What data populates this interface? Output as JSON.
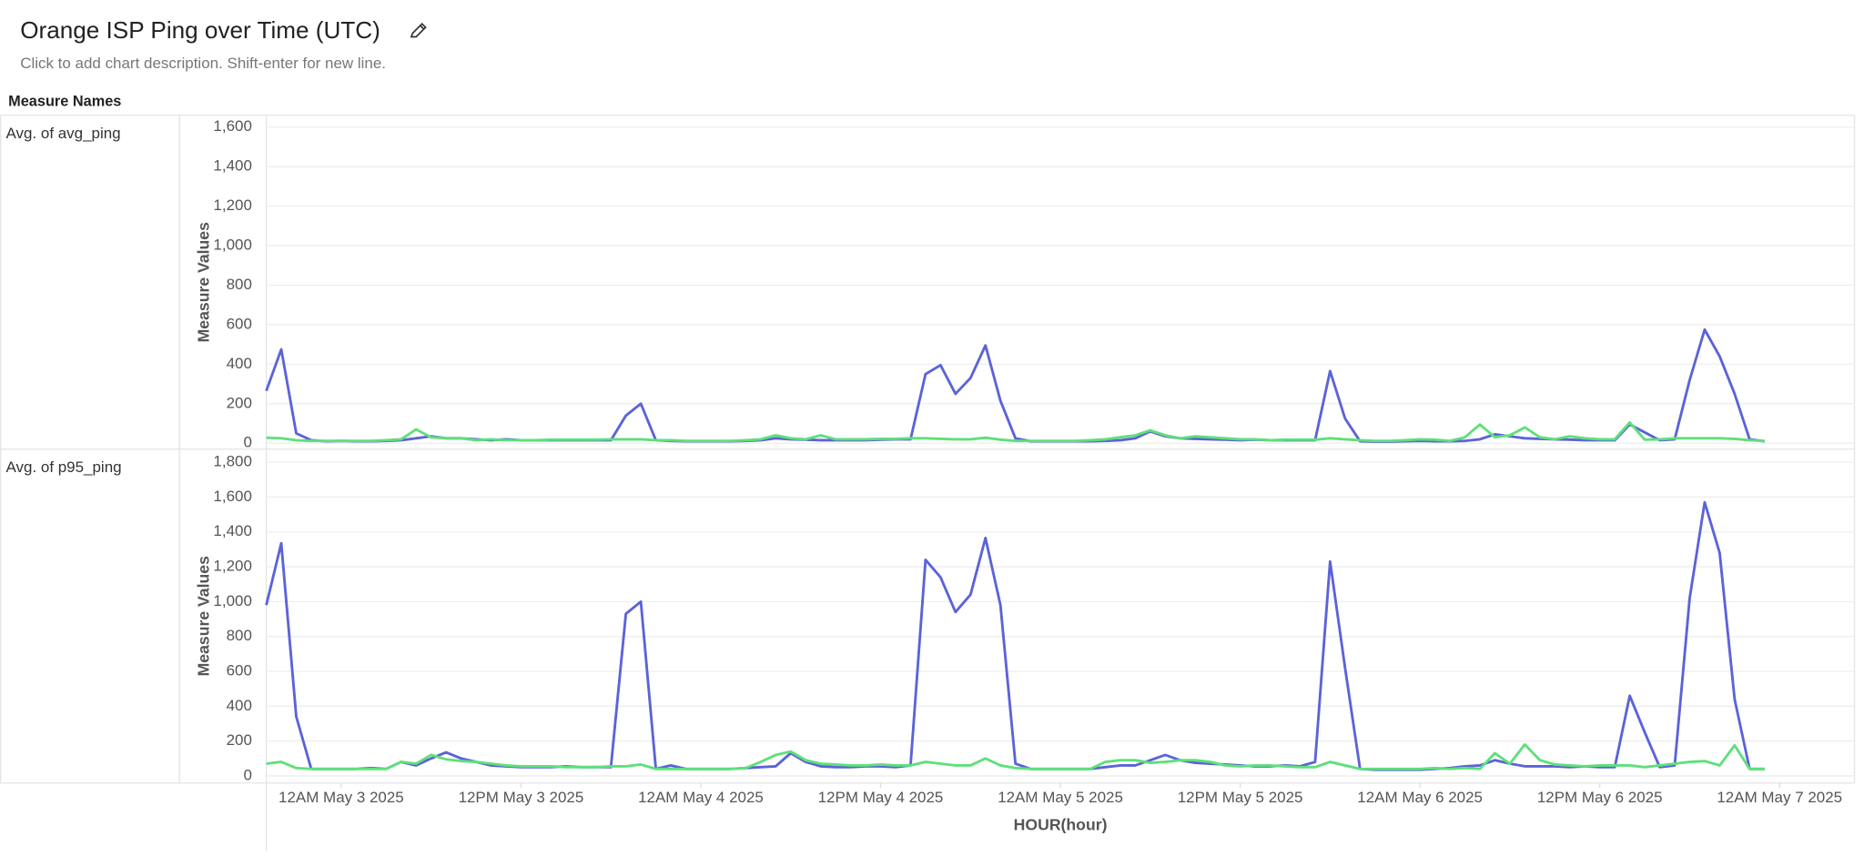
{
  "chart_data": {
    "type": "line",
    "title": "Orange ISP Ping over Time (UTC)",
    "subtitle": "Click to add chart description. Shift-enter for new line.",
    "facet_header": "Measure Names",
    "x_label": "HOUR(hour)",
    "x": [
      "2025-05-02T19:00",
      "2025-05-02T20:00",
      "2025-05-02T21:00",
      "2025-05-02T22:00",
      "2025-05-02T23:00",
      "2025-05-03T00:00",
      "2025-05-03T01:00",
      "2025-05-03T02:00",
      "2025-05-03T03:00",
      "2025-05-03T04:00",
      "2025-05-03T05:00",
      "2025-05-03T06:00",
      "2025-05-03T07:00",
      "2025-05-03T08:00",
      "2025-05-03T09:00",
      "2025-05-03T10:00",
      "2025-05-03T11:00",
      "2025-05-03T12:00",
      "2025-05-03T13:00",
      "2025-05-03T14:00",
      "2025-05-03T15:00",
      "2025-05-03T16:00",
      "2025-05-03T17:00",
      "2025-05-03T18:00",
      "2025-05-03T19:00",
      "2025-05-03T20:00",
      "2025-05-03T21:00",
      "2025-05-03T22:00",
      "2025-05-03T23:00",
      "2025-05-04T00:00",
      "2025-05-04T01:00",
      "2025-05-04T02:00",
      "2025-05-04T03:00",
      "2025-05-04T04:00",
      "2025-05-04T05:00",
      "2025-05-04T06:00",
      "2025-05-04T07:00",
      "2025-05-04T08:00",
      "2025-05-04T09:00",
      "2025-05-04T10:00",
      "2025-05-04T11:00",
      "2025-05-04T12:00",
      "2025-05-04T13:00",
      "2025-05-04T14:00",
      "2025-05-04T15:00",
      "2025-05-04T16:00",
      "2025-05-04T17:00",
      "2025-05-04T18:00",
      "2025-05-04T19:00",
      "2025-05-04T20:00",
      "2025-05-04T21:00",
      "2025-05-04T22:00",
      "2025-05-04T23:00",
      "2025-05-05T00:00",
      "2025-05-05T01:00",
      "2025-05-05T02:00",
      "2025-05-05T03:00",
      "2025-05-05T04:00",
      "2025-05-05T05:00",
      "2025-05-05T06:00",
      "2025-05-05T07:00",
      "2025-05-05T08:00",
      "2025-05-05T09:00",
      "2025-05-05T10:00",
      "2025-05-05T11:00",
      "2025-05-05T12:00",
      "2025-05-05T13:00",
      "2025-05-05T14:00",
      "2025-05-05T15:00",
      "2025-05-05T16:00",
      "2025-05-05T17:00",
      "2025-05-05T18:00",
      "2025-05-05T19:00",
      "2025-05-05T20:00",
      "2025-05-05T21:00",
      "2025-05-05T22:00",
      "2025-05-05T23:00",
      "2025-05-06T00:00",
      "2025-05-06T01:00",
      "2025-05-06T02:00",
      "2025-05-06T03:00",
      "2025-05-06T04:00",
      "2025-05-06T05:00",
      "2025-05-06T06:00",
      "2025-05-06T07:00",
      "2025-05-06T08:00",
      "2025-05-06T09:00",
      "2025-05-06T10:00",
      "2025-05-06T11:00",
      "2025-05-06T12:00",
      "2025-05-06T13:00",
      "2025-05-06T14:00",
      "2025-05-06T15:00",
      "2025-05-06T16:00",
      "2025-05-06T17:00",
      "2025-05-06T18:00",
      "2025-05-06T19:00",
      "2025-05-06T20:00",
      "2025-05-06T21:00",
      "2025-05-06T22:00",
      "2025-05-06T23:00"
    ],
    "xlim": [
      "2025-05-02T19:00",
      "2025-05-07T05:00"
    ],
    "xticks": [
      {
        "value": "2025-05-03T00:00",
        "label": "12AM May 3 2025"
      },
      {
        "value": "2025-05-03T12:00",
        "label": "12PM May 3 2025"
      },
      {
        "value": "2025-05-04T00:00",
        "label": "12AM May 4 2025"
      },
      {
        "value": "2025-05-04T12:00",
        "label": "12PM May 4 2025"
      },
      {
        "value": "2025-05-05T00:00",
        "label": "12AM May 5 2025"
      },
      {
        "value": "2025-05-05T12:00",
        "label": "12PM May 5 2025"
      },
      {
        "value": "2025-05-06T00:00",
        "label": "12AM May 6 2025"
      },
      {
        "value": "2025-05-06T12:00",
        "label": "12PM May 6 2025"
      },
      {
        "value": "2025-05-07T00:00",
        "label": "12AM May 7 2025"
      }
    ],
    "grid": true,
    "panels": [
      {
        "label": "Avg. of avg_ping",
        "y_label": "Measure Values",
        "ylim": [
          -30,
          1660
        ],
        "yticks": [
          0,
          200,
          400,
          600,
          800,
          {
            "value": 1000,
            "label": "1,000"
          },
          {
            "value": 1200,
            "label": "1,200"
          },
          {
            "value": 1400,
            "label": "1,400"
          },
          {
            "value": 1600,
            "label": "1,600"
          }
        ],
        "series": [
          {
            "color": "#5b63d9",
            "values": [
              265,
              475,
              50,
              15,
              10,
              12,
              10,
              10,
              12,
              15,
              25,
              35,
              25,
              25,
              20,
              15,
              20,
              15,
              15,
              15,
              15,
              15,
              15,
              15,
              140,
              200,
              15,
              12,
              10,
              10,
              10,
              10,
              12,
              15,
              25,
              20,
              18,
              15,
              15,
              15,
              15,
              18,
              20,
              20,
              350,
              395,
              250,
              330,
              495,
              215,
              25,
              10,
              10,
              10,
              10,
              10,
              12,
              15,
              25,
              60,
              35,
              25,
              22,
              20,
              18,
              15,
              18,
              15,
              15,
              15,
              15,
              365,
              125,
              10,
              8,
              8,
              10,
              12,
              10,
              10,
              12,
              20,
              45,
              35,
              25,
              22,
              20,
              18,
              15,
              15,
              15,
              95,
              55,
              15,
              20,
              320,
              575,
              440,
              250,
              20,
              10
            ]
          },
          {
            "color": "#5ee07a",
            "values": [
              28,
              25,
              15,
              12,
              12,
              12,
              12,
              12,
              15,
              20,
              70,
              30,
              25,
              25,
              15,
              20,
              15,
              15,
              15,
              18,
              18,
              18,
              18,
              20,
              20,
              20,
              15,
              15,
              12,
              12,
              12,
              12,
              15,
              20,
              40,
              25,
              20,
              40,
              20,
              20,
              20,
              22,
              22,
              25,
              25,
              22,
              20,
              20,
              28,
              18,
              12,
              12,
              12,
              12,
              12,
              15,
              20,
              30,
              40,
              65,
              40,
              25,
              35,
              30,
              25,
              20,
              20,
              15,
              18,
              18,
              18,
              25,
              20,
              15,
              12,
              12,
              15,
              20,
              18,
              12,
              30,
              95,
              30,
              40,
              80,
              30,
              20,
              35,
              25,
              20,
              20,
              105,
              18,
              20,
              25,
              25,
              25,
              25,
              22,
              15,
              12
            ]
          }
        ]
      },
      {
        "label": "Avg. of p95_ping",
        "y_label": "Measure Values",
        "ylim": [
          -41,
          1875
        ],
        "yticks": [
          0,
          200,
          400,
          600,
          800,
          {
            "value": 1000,
            "label": "1,000"
          },
          {
            "value": 1200,
            "label": "1,200"
          },
          {
            "value": 1400,
            "label": "1,400"
          },
          {
            "value": 1600,
            "label": "1,600"
          },
          {
            "value": 1800,
            "label": "1,800"
          }
        ],
        "series": [
          {
            "color": "#5b63d9",
            "values": [
              980,
              1335,
              340,
              40,
              40,
              40,
              40,
              45,
              40,
              80,
              60,
              100,
              135,
              100,
              80,
              60,
              55,
              50,
              50,
              50,
              55,
              50,
              50,
              50,
              930,
              1000,
              40,
              60,
              40,
              40,
              40,
              40,
              45,
              50,
              55,
              130,
              80,
              55,
              50,
              50,
              55,
              55,
              50,
              60,
              1240,
              1140,
              940,
              1040,
              1365,
              980,
              70,
              40,
              40,
              40,
              40,
              40,
              50,
              60,
              60,
              90,
              120,
              90,
              75,
              70,
              65,
              60,
              55,
              55,
              60,
              55,
              80,
              1230,
              620,
              40,
              35,
              35,
              35,
              35,
              40,
              45,
              55,
              60,
              90,
              70,
              55,
              55,
              55,
              50,
              55,
              50,
              50,
              460,
              250,
              50,
              60,
              1020,
              1570,
              1280,
              440,
              40,
              40
            ]
          },
          {
            "color": "#5ee07a",
            "values": [
              70,
              80,
              45,
              40,
              40,
              40,
              40,
              40,
              40,
              80,
              70,
              120,
              95,
              85,
              80,
              70,
              60,
              55,
              55,
              55,
              50,
              50,
              50,
              55,
              55,
              65,
              40,
              40,
              40,
              40,
              40,
              40,
              45,
              80,
              120,
              140,
              90,
              70,
              65,
              60,
              60,
              65,
              60,
              60,
              80,
              70,
              60,
              60,
              100,
              60,
              45,
              40,
              40,
              40,
              40,
              40,
              80,
              90,
              90,
              75,
              80,
              90,
              90,
              80,
              60,
              55,
              60,
              60,
              55,
              50,
              50,
              80,
              60,
              40,
              40,
              40,
              40,
              40,
              45,
              40,
              45,
              40,
              130,
              70,
              180,
              90,
              65,
              60,
              55,
              60,
              60,
              60,
              50,
              60,
              70,
              80,
              85,
              60,
              175,
              40,
              40
            ]
          }
        ]
      }
    ]
  }
}
